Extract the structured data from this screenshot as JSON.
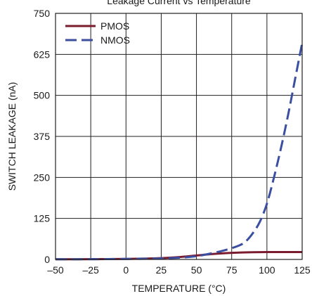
{
  "chart_data": {
    "type": "line",
    "title": "Leakage Current vs Temperature",
    "xlabel": "TEMPERATURE (°C)",
    "ylabel": "SWITCH LEAKAGE (nA)",
    "xlim": [
      -50,
      125
    ],
    "ylim": [
      0,
      750
    ],
    "x_ticks": [
      -50,
      -25,
      0,
      25,
      50,
      75,
      100,
      125
    ],
    "y_ticks": [
      0,
      125,
      250,
      375,
      500,
      625,
      750
    ],
    "x_tick_labels": [
      "–50",
      "–25",
      "0",
      "25",
      "50",
      "75",
      "100",
      "125"
    ],
    "y_tick_labels": [
      "0",
      "125",
      "250",
      "375",
      "500",
      "625",
      "750"
    ],
    "grid": true,
    "legend_position": "top-left",
    "series": [
      {
        "name": "PMOS",
        "color": "#7b1b2e",
        "style": "solid",
        "x": [
          -50,
          -25,
          0,
          25,
          40,
          50,
          60,
          70,
          80,
          90,
          100,
          110,
          125
        ],
        "y": [
          0.5,
          0.8,
          1.5,
          4,
          8,
          12,
          16,
          19,
          21,
          22,
          22.5,
          22.5,
          22.5
        ]
      },
      {
        "name": "NMOS",
        "color": "#3a4ea2",
        "style": "dashed",
        "x": [
          -50,
          -25,
          0,
          25,
          40,
          50,
          60,
          70,
          80,
          85,
          90,
          95,
          100,
          105,
          110,
          115,
          120,
          125
        ],
        "y": [
          0.5,
          0.8,
          1.5,
          3,
          6,
          10,
          18,
          28,
          42,
          55,
          80,
          115,
          170,
          250,
          340,
          440,
          550,
          660
        ]
      }
    ]
  }
}
